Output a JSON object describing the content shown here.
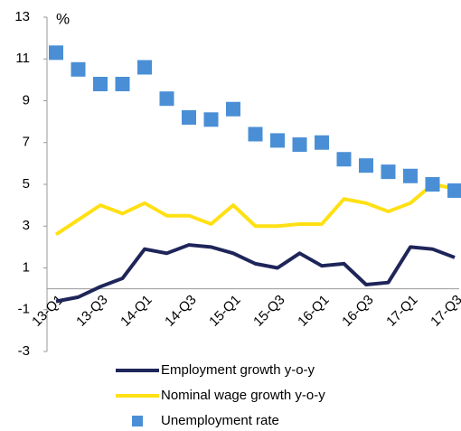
{
  "chart_data": {
    "type": "line",
    "y_label": "%",
    "categories": [
      "13-Q1",
      null,
      "13-Q3",
      null,
      "14-Q1",
      null,
      "14-Q3",
      null,
      "15-Q1",
      null,
      "15-Q3",
      null,
      "16-Q1",
      null,
      "16-Q3",
      null,
      "17-Q1",
      null,
      "17-Q3"
    ],
    "series": [
      {
        "name": "Employment growth y-o-y",
        "color": "#1e2559",
        "style": "line",
        "values": [
          -0.6,
          -0.4,
          0.1,
          0.5,
          1.9,
          1.7,
          2.1,
          2.0,
          1.7,
          1.2,
          1.0,
          1.7,
          1.1,
          1.2,
          0.2,
          0.3,
          2.0,
          1.9,
          1.5
        ]
      },
      {
        "name": "Nominal wage growth y-o-y",
        "color": "#ffe014",
        "style": "line",
        "values": [
          2.6,
          3.3,
          4.0,
          3.6,
          4.1,
          3.5,
          3.5,
          3.1,
          4.0,
          3.0,
          3.0,
          3.1,
          3.1,
          4.3,
          4.1,
          3.7,
          4.1,
          5.0,
          4.8
        ]
      },
      {
        "name": "Unemployment rate",
        "color": "#4a8fd6",
        "style": "square",
        "values": [
          11.3,
          10.5,
          9.8,
          9.8,
          10.6,
          9.1,
          8.2,
          8.1,
          8.6,
          7.4,
          7.1,
          6.9,
          7.0,
          6.2,
          5.9,
          5.6,
          5.4,
          5.0,
          4.7
        ]
      }
    ],
    "ylim": [
      -3,
      13
    ],
    "yticks": [
      -3,
      -1,
      1,
      3,
      5,
      7,
      9,
      11,
      13
    ],
    "grid": false
  }
}
